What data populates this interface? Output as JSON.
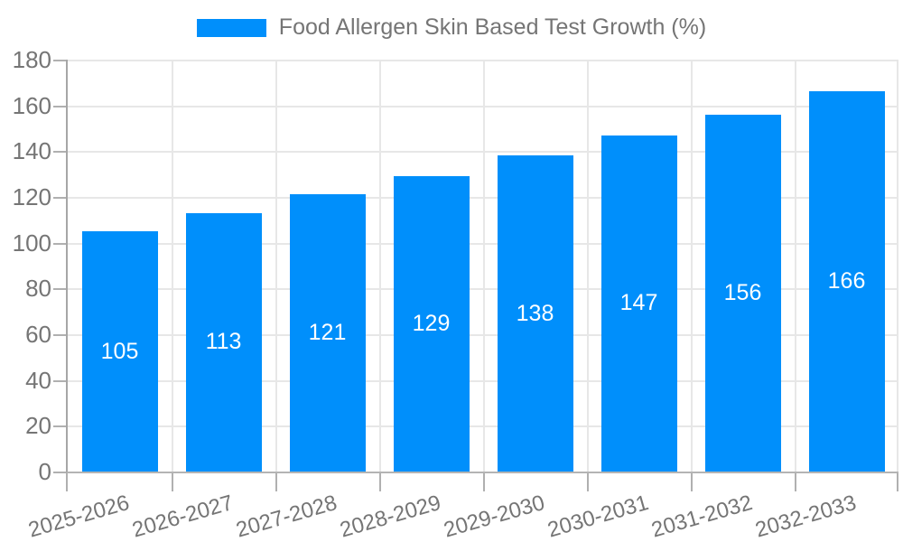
{
  "legend": {
    "label": "Food Allergen Skin Based Test Growth (%)",
    "swatch_color": "#008FFB"
  },
  "chart_data": {
    "type": "bar",
    "title": "Food Allergen Skin Based Test Growth (%)",
    "categories": [
      "2025-2026",
      "2026-2027",
      "2027-2028",
      "2028-2029",
      "2029-2030",
      "2030-2031",
      "2031-2032",
      "2032-2033"
    ],
    "values": [
      105,
      113,
      121,
      129,
      138,
      147,
      156,
      166
    ],
    "xlabel": "",
    "ylabel": "",
    "ylim": [
      0,
      180
    ],
    "yticks": [
      0,
      20,
      40,
      60,
      80,
      100,
      120,
      140,
      160,
      180
    ],
    "grid": true,
    "legend_position": "top",
    "bar_color": "#008FFB",
    "data_label_color": "#FFFFFF",
    "axis_text_color": "#757575",
    "grid_color": "#e7e7e7",
    "y_axis_line_color": "#a6a6a6",
    "x_axis_line_color": "#b4b4b4",
    "tick_color": "#b0b0b0"
  }
}
